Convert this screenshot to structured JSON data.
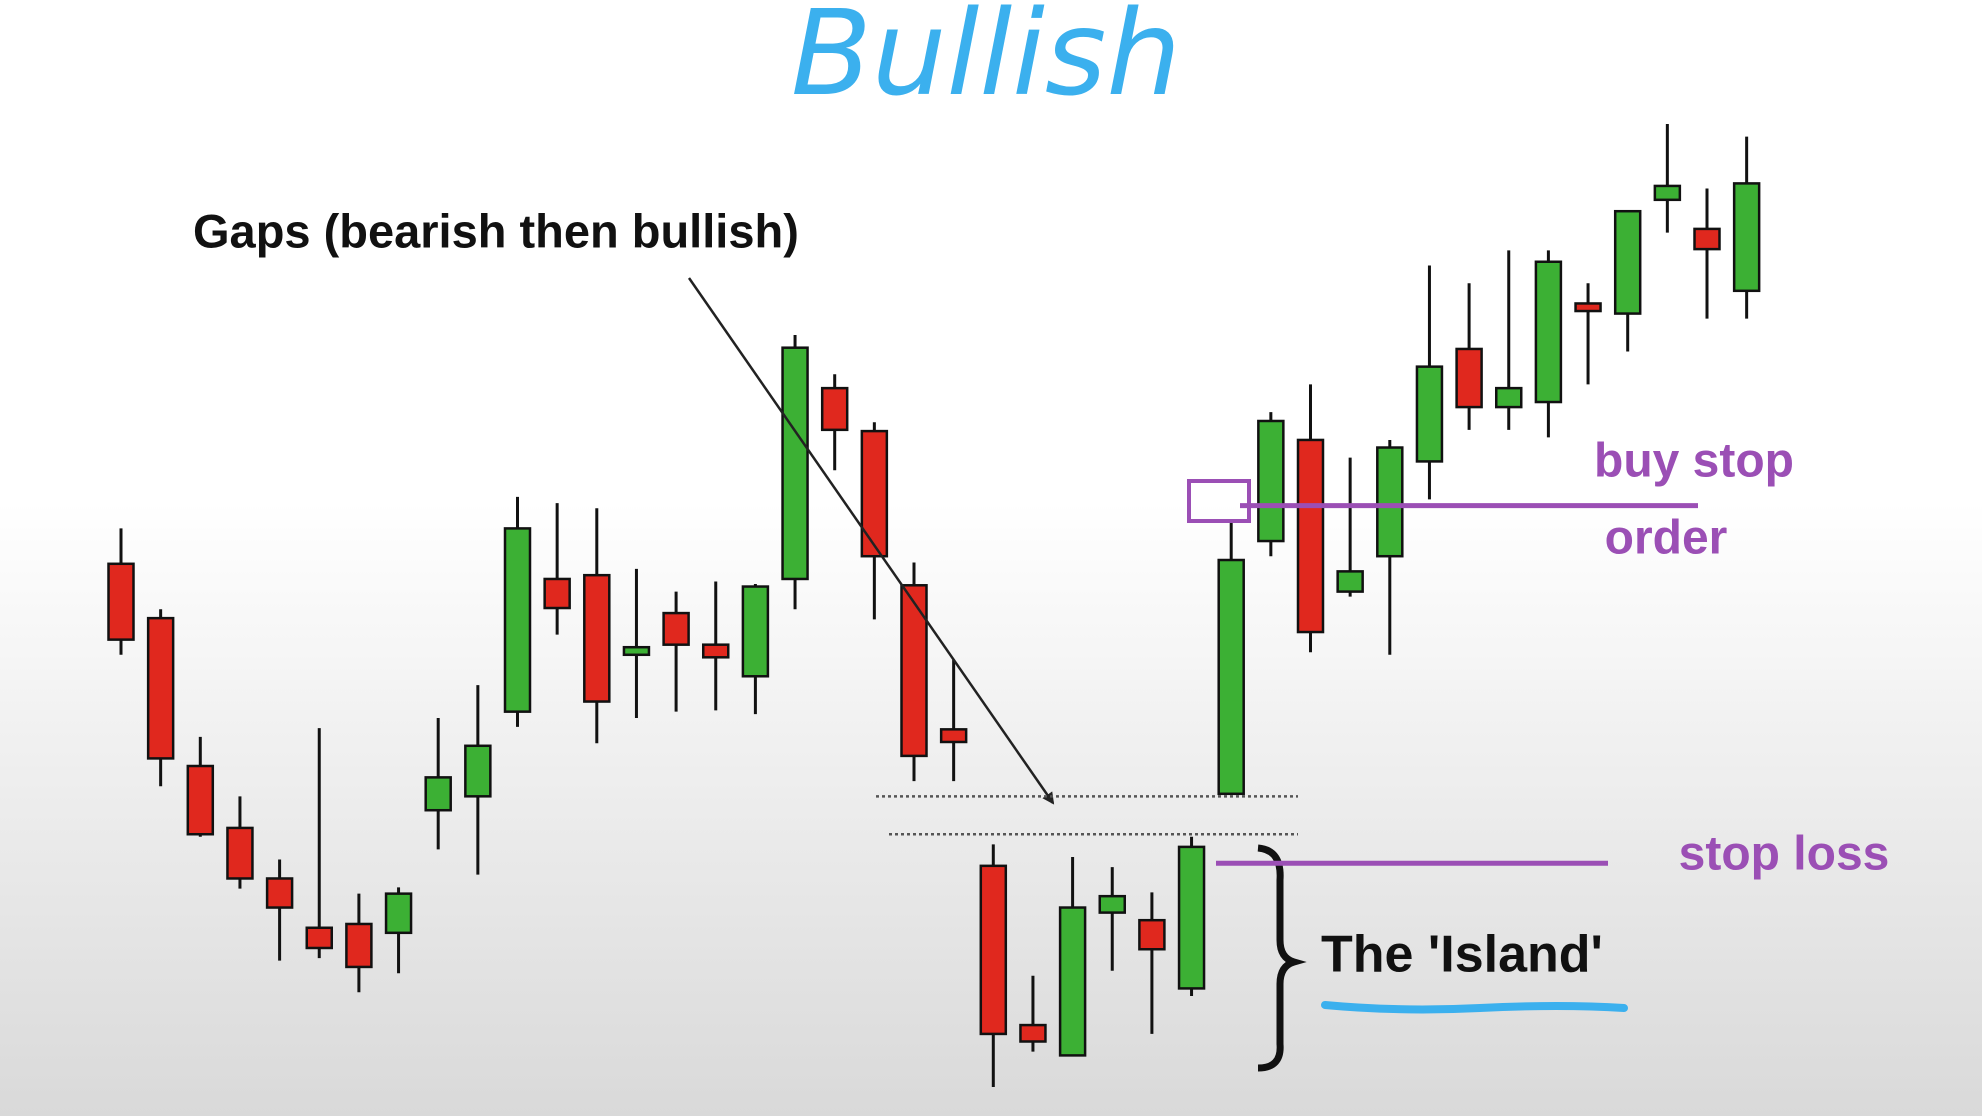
{
  "chart_data": {
    "type": "candlestick",
    "title": "Bullish",
    "up_color": "#3cb034",
    "down_color": "#e0281e",
    "open": [
      437,
      394,
      277,
      228,
      188,
      149,
      152,
      145,
      242,
      253,
      320,
      425,
      428,
      365,
      398,
      373,
      348,
      425,
      576,
      542,
      420,
      306,
      198,
      72,
      48,
      161,
      155,
      101,
      255,
      455,
      535,
      415,
      443,
      518,
      607,
      561,
      565,
      643,
      635,
      725,
      702,
      653
    ],
    "high": [
      465,
      401,
      300,
      253,
      203,
      307,
      176,
      181,
      315,
      341,
      490,
      485,
      481,
      433,
      415,
      423,
      421,
      618,
      587,
      549,
      438,
      361,
      215,
      111,
      205,
      197,
      177,
      221,
      471,
      557,
      579,
      521,
      535,
      673,
      659,
      685,
      685,
      659,
      716,
      785,
      734,
      775
    ],
    "low": [
      365,
      261,
      221,
      180,
      123,
      125,
      98,
      113,
      211,
      191,
      308,
      381,
      295,
      315,
      320,
      321,
      318,
      401,
      511,
      393,
      265,
      265,
      23,
      51,
      48,
      115,
      65,
      95,
      255,
      443,
      367,
      411,
      365,
      488,
      543,
      543,
      537,
      579,
      605,
      699,
      631,
      631
    ],
    "close": [
      377,
      283,
      223,
      188,
      165,
      133,
      118,
      176,
      268,
      293,
      465,
      402,
      328,
      371,
      373,
      363,
      419,
      608,
      543,
      443,
      285,
      296,
      65,
      59,
      165,
      174,
      132,
      213,
      440,
      550,
      383,
      431,
      529,
      593,
      561,
      576,
      676,
      637,
      716,
      736,
      686,
      738
    ],
    "gap_levels": [
      253,
      223
    ],
    "buy_stop": {
      "label": [
        "buy stop",
        "order"
      ],
      "value": 483,
      "color": "#9b4fb5"
    },
    "stop_loss": {
      "label": "stop loss",
      "value": 200,
      "color": "#9b4fb5"
    },
    "annotations": {
      "gaps": "Gaps (bearish then bullish)",
      "island": "The 'Island'"
    }
  }
}
